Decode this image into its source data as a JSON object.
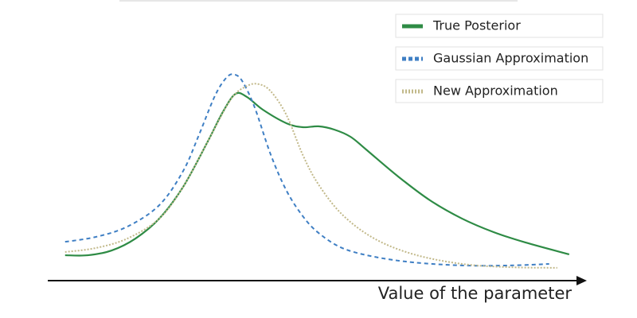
{
  "chart_data": {
    "type": "line",
    "x_label": "Value of the parameter",
    "xlim": [
      0,
      10
    ],
    "ylim": [
      0,
      1
    ],
    "legend": "top-right",
    "series": [
      {
        "name": "True Posterior",
        "color": "#2e8b45",
        "dash": "solid",
        "x": [
          0.32,
          0.74,
          1.18,
          1.62,
          2.06,
          2.5,
          2.94,
          3.24,
          3.47,
          3.68,
          3.97,
          4.41,
          4.71,
          5.0,
          5.29,
          5.59,
          5.88,
          6.47,
          7.06,
          7.65,
          8.24,
          8.82,
          9.63
        ],
        "values": [
          0.117,
          0.117,
          0.139,
          0.194,
          0.286,
          0.432,
          0.634,
          0.78,
          0.861,
          0.846,
          0.788,
          0.725,
          0.707,
          0.711,
          0.696,
          0.663,
          0.604,
          0.48,
          0.37,
          0.286,
          0.223,
          0.176,
          0.121
        ]
      },
      {
        "name": "Gaussian Approximation",
        "color": "#3f7fc4",
        "dash": "dashed",
        "x": [
          0.32,
          0.88,
          1.47,
          2.06,
          2.5,
          2.79,
          3.09,
          3.31,
          3.46,
          3.6,
          3.82,
          4.12,
          4.41,
          4.71,
          5.0,
          5.44,
          6.03,
          6.76,
          7.65,
          8.53,
          9.26
        ],
        "values": [
          0.179,
          0.201,
          0.249,
          0.348,
          0.505,
          0.67,
          0.853,
          0.938,
          0.949,
          0.916,
          0.799,
          0.579,
          0.414,
          0.297,
          0.22,
          0.15,
          0.11,
          0.084,
          0.07,
          0.07,
          0.077
        ]
      },
      {
        "name": "New Approximation",
        "color": "#c2b98a",
        "dash": "dotted",
        "x": [
          0.32,
          0.88,
          1.47,
          2.06,
          2.5,
          2.94,
          3.38,
          3.68,
          3.9,
          4.12,
          4.41,
          4.71,
          5.0,
          5.44,
          6.03,
          6.76,
          7.65,
          8.53,
          9.41
        ],
        "values": [
          0.132,
          0.15,
          0.194,
          0.286,
          0.432,
          0.634,
          0.835,
          0.897,
          0.905,
          0.872,
          0.762,
          0.579,
          0.443,
          0.304,
          0.194,
          0.121,
          0.077,
          0.062,
          0.059
        ]
      }
    ]
  }
}
